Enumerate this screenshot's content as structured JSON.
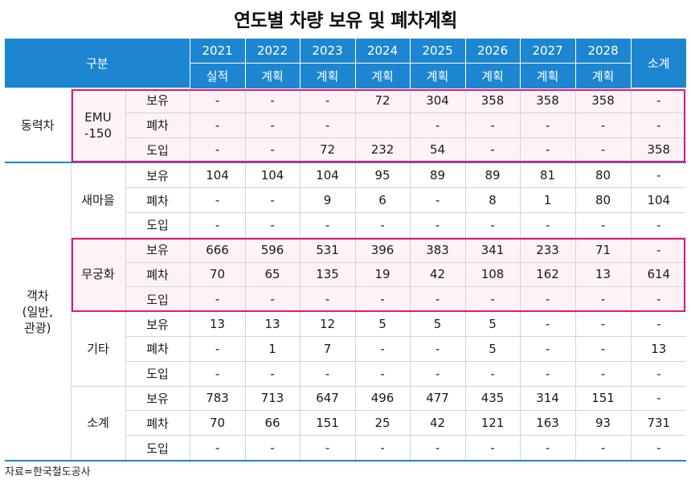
{
  "title": "연도별 차량 보유 및 폐차계획",
  "header": {
    "category": "구분",
    "years": [
      "2021",
      "2022",
      "2023",
      "2024",
      "2025",
      "2026",
      "2027",
      "2028"
    ],
    "statuses": [
      "실적",
      "계획",
      "계획",
      "계획",
      "계획",
      "계획",
      "계획",
      "계획"
    ],
    "total": "소계"
  },
  "groups": [
    {
      "name": "동력차",
      "subgroups": [
        {
          "name": "EMU\n-150",
          "highlighted": true,
          "rows": [
            {
              "type": "보유",
              "values": [
                "-",
                "-",
                "-",
                "72",
                "304",
                "358",
                "358",
                "358",
                "-"
              ]
            },
            {
              "type": "폐차",
              "values": [
                "-",
                "-",
                "-",
                "",
                "-",
                "-",
                "-",
                "-",
                "-"
              ]
            },
            {
              "type": "도입",
              "values": [
                "-",
                "-",
                "72",
                "232",
                "54",
                "-",
                "-",
                "-",
                "358"
              ]
            }
          ]
        }
      ]
    },
    {
      "name": "객차\n(일반,\n관광)",
      "subgroups": [
        {
          "name": "새마을",
          "highlighted": false,
          "rows": [
            {
              "type": "보유",
              "values": [
                "104",
                "104",
                "104",
                "95",
                "89",
                "89",
                "81",
                "80",
                "-"
              ]
            },
            {
              "type": "폐차",
              "values": [
                "-",
                "-",
                "9",
                "6",
                "-",
                "8",
                "1",
                "80",
                "104"
              ]
            },
            {
              "type": "도입",
              "values": [
                "-",
                "-",
                "-",
                "-",
                "-",
                "-",
                "-",
                "-",
                "-"
              ]
            }
          ]
        },
        {
          "name": "무궁화",
          "highlighted": true,
          "rows": [
            {
              "type": "보유",
              "values": [
                "666",
                "596",
                "531",
                "396",
                "383",
                "341",
                "233",
                "71",
                "-"
              ]
            },
            {
              "type": "폐차",
              "values": [
                "70",
                "65",
                "135",
                "19",
                "42",
                "108",
                "162",
                "13",
                "614"
              ]
            },
            {
              "type": "도입",
              "values": [
                "-",
                "-",
                "-",
                "-",
                "-",
                "-",
                "-",
                "-",
                "-"
              ]
            }
          ]
        },
        {
          "name": "기타",
          "highlighted": false,
          "rows": [
            {
              "type": "보유",
              "values": [
                "13",
                "13",
                "12",
                "5",
                "5",
                "5",
                "-",
                "-",
                "-"
              ]
            },
            {
              "type": "폐차",
              "values": [
                "-",
                "1",
                "7",
                "-",
                "-",
                "5",
                "-",
                "-",
                "13"
              ]
            },
            {
              "type": "도입",
              "values": [
                "-",
                "-",
                "-",
                "-",
                "-",
                "-",
                "-",
                "-",
                "-"
              ]
            }
          ]
        },
        {
          "name": "소계",
          "highlighted": false,
          "rows": [
            {
              "type": "보유",
              "values": [
                "783",
                "713",
                "647",
                "496",
                "477",
                "435",
                "314",
                "151",
                "-"
              ]
            },
            {
              "type": "폐차",
              "values": [
                "70",
                "66",
                "151",
                "25",
                "42",
                "121",
                "163",
                "93",
                "731"
              ]
            },
            {
              "type": "도입",
              "values": [
                "-",
                "-",
                "-",
                "-",
                "-",
                "-",
                "-",
                "-",
                "-"
              ]
            }
          ]
        }
      ]
    }
  ],
  "source": "자료=한국철도공사",
  "colors": {
    "header_bg": "#1d86d0",
    "highlight": "#e0197a",
    "highlight_fill": "#fdf3f7"
  }
}
